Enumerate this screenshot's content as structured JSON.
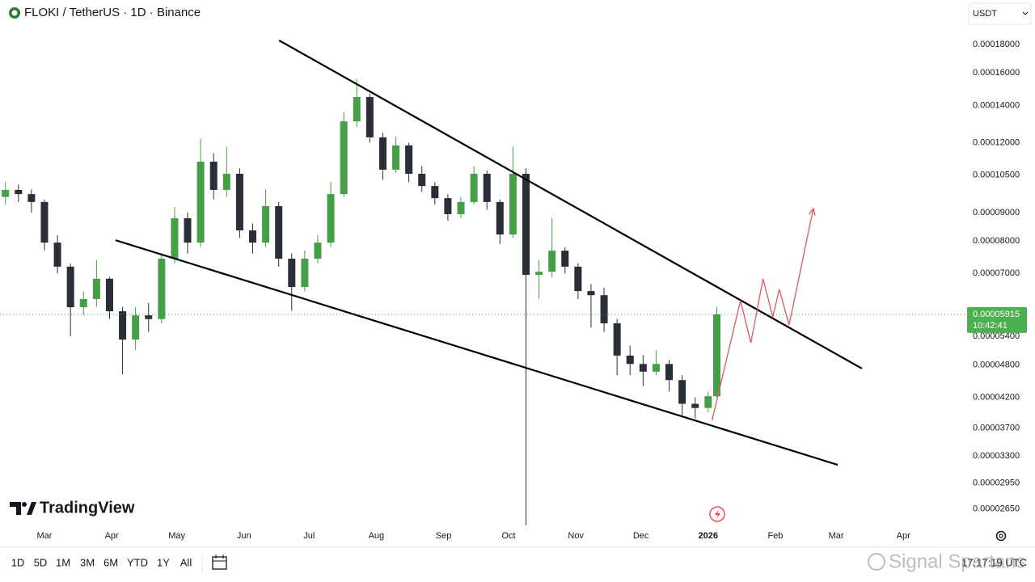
{
  "chart_data": {
    "type": "candlestick",
    "title": "FLOKI / TetherUS · 1D · Binance",
    "log_scale": true,
    "grid": false,
    "up_color": "#43a047",
    "down_color": "#2a2e39",
    "xlim": [
      -20.5,
      425
    ],
    "ylim": [
      2.477e-05,
      0.0002162
    ],
    "xticks": [
      {
        "value": 0,
        "label": "Mar"
      },
      {
        "value": 31,
        "label": "Apr"
      },
      {
        "value": 61,
        "label": "May"
      },
      {
        "value": 92,
        "label": "Jun"
      },
      {
        "value": 122,
        "label": "Jul"
      },
      {
        "value": 153,
        "label": "Aug"
      },
      {
        "value": 184,
        "label": "Sep"
      },
      {
        "value": 214,
        "label": "Oct"
      },
      {
        "value": 245,
        "label": "Nov"
      },
      {
        "value": 275,
        "label": "Dec"
      },
      {
        "value": 306,
        "label": "2026"
      },
      {
        "value": 337,
        "label": "Feb"
      },
      {
        "value": 365,
        "label": "Mar"
      },
      {
        "value": 396,
        "label": "Apr"
      }
    ],
    "yticks": [
      {
        "value": 0.00018,
        "label": "0.00018000"
      },
      {
        "value": 0.00016,
        "label": "0.00016000"
      },
      {
        "value": 0.00014,
        "label": "0.00014000"
      },
      {
        "value": 0.00012,
        "label": "0.00012000"
      },
      {
        "value": 0.000105,
        "label": "0.00010500"
      },
      {
        "value": 9e-05,
        "label": "0.00009000"
      },
      {
        "value": 8e-05,
        "label": "0.00008000"
      },
      {
        "value": 7e-05,
        "label": "0.00007000"
      },
      {
        "value": 5.4e-05,
        "label": "0.00005400"
      },
      {
        "value": 4.8e-05,
        "label": "0.00004800"
      },
      {
        "value": 4.2e-05,
        "label": "0.00004200"
      },
      {
        "value": 3.7e-05,
        "label": "0.00003700"
      },
      {
        "value": 3.3e-05,
        "label": "0.00003300"
      },
      {
        "value": 2.95e-05,
        "label": "0.00002950"
      },
      {
        "value": 2.65e-05,
        "label": "0.00002650"
      }
    ],
    "x": [
      -18,
      -12,
      -6,
      0,
      6,
      12,
      18,
      24,
      30,
      36,
      42,
      48,
      54,
      60,
      66,
      72,
      78,
      84,
      90,
      96,
      102,
      108,
      114,
      120,
      126,
      132,
      138,
      144,
      150,
      156,
      162,
      168,
      174,
      180,
      186,
      192,
      198,
      204,
      210,
      216,
      222,
      228,
      234,
      240,
      246,
      252,
      258,
      264,
      270,
      276,
      282,
      288,
      294,
      300,
      306,
      310
    ],
    "open": [
      9.6e-05,
      9.88e-05,
      9.71e-05,
      9.4e-05,
      7.95e-05,
      7.2e-05,
      6.09e-05,
      6.3e-05,
      6.85e-05,
      5.99e-05,
      5.33e-05,
      5.89e-05,
      5.8e-05,
      7.44e-05,
      8.79e-05,
      7.95e-05,
      0.000111,
      9.88e-05,
      0.0001056,
      8.36e-05,
      7.95e-05,
      9.24e-05,
      7.44e-05,
      6.62e-05,
      7.44e-05,
      7.95e-05,
      9.71e-05,
      0.0001311,
      0.0001449,
      0.0001227,
      0.0001074,
      0.0001187,
      0.0001056,
      0.0001004,
      9.55e-05,
      8.94e-05,
      9.4e-05,
      0.0001056,
      9.4e-05,
      8.22e-05,
      0.0001056,
      6.96e-05,
      7.05e-05,
      7.69e-05,
      7.2e-05,
      6.51e-05,
      6.4e-05,
      5.7e-05,
      4.99e-05,
      4.82e-05,
      4.67e-05,
      4.82e-05,
      4.51e-05,
      4.09e-05,
      4.02e-05,
      4.22e-05
    ],
    "high": [
      0.000102,
      0.000101,
      9.9e-05,
      9.5e-05,
      8.2e-05,
      7.3e-05,
      6.5e-05,
      7.4e-05,
      6.9e-05,
      6.1e-05,
      6.1e-05,
      6.2e-05,
      7.6e-05,
      9.2e-05,
      9e-05,
      0.000122,
      0.000115,
      0.000118,
      0.000108,
      8.6e-05,
      9.9e-05,
      9.4e-05,
      7.6e-05,
      7.7e-05,
      8.2e-05,
      0.000102,
      0.000136,
      0.000156,
      0.000147,
      0.000125,
      0.000123,
      0.00012,
      0.000109,
      0.000102,
      9.7e-05,
      9.6e-05,
      0.000109,
      0.000107,
      9.5e-05,
      0.000118,
      0.000108,
      7.4e-05,
      8.8e-05,
      7.8e-05,
      7.3e-05,
      6.7e-05,
      6.6e-05,
      5.8e-05,
      5.2e-05,
      5e-05,
      5.1e-05,
      4.9e-05,
      4.6e-05,
      4.2e-05,
      4.3e-05,
      6.1e-05
    ],
    "low": [
      9.3e-05,
      9.4e-05,
      9e-05,
      7.7e-05,
      7e-05,
      5.4e-05,
      5.9e-05,
      6.1e-05,
      5.8e-05,
      4.62e-05,
      5.1e-05,
      5.5e-05,
      5.7e-05,
      7.3e-05,
      7.6e-05,
      7.8e-05,
      9.5e-05,
      9.6e-05,
      8.1e-05,
      7.6e-05,
      7.8e-05,
      7.2e-05,
      6e-05,
      6.5e-05,
      7.3e-05,
      7.8e-05,
      9.6e-05,
      0.000128,
      0.00012,
      0.000103,
      0.000106,
      0.000102,
      9.8e-05,
      9.3e-05,
      8.7e-05,
      8.8e-05,
      9.3e-05,
      9.1e-05,
      7.9e-05,
      8.1e-05,
      2.48e-05,
      6.3e-05,
      6.9e-05,
      7e-05,
      6.3e-05,
      5.6e-05,
      5.5e-05,
      4.6e-05,
      4.6e-05,
      4.4e-05,
      4.6e-05,
      4.3e-05,
      3.9e-05,
      3.85e-05,
      3.95e-05,
      4.2e-05
    ],
    "close": [
      9.88e-05,
      9.71e-05,
      9.4e-05,
      7.95e-05,
      7.2e-05,
      6.09e-05,
      6.3e-05,
      6.85e-05,
      5.99e-05,
      5.33e-05,
      5.89e-05,
      5.8e-05,
      7.44e-05,
      8.79e-05,
      7.95e-05,
      0.000111,
      9.88e-05,
      0.0001056,
      8.36e-05,
      7.95e-05,
      9.24e-05,
      7.44e-05,
      6.62e-05,
      7.44e-05,
      7.95e-05,
      9.71e-05,
      0.0001311,
      0.0001449,
      0.0001227,
      0.0001074,
      0.0001187,
      0.0001056,
      0.0001004,
      9.55e-05,
      8.94e-05,
      9.4e-05,
      0.0001056,
      9.4e-05,
      8.22e-05,
      0.0001056,
      6.96e-05,
      7.05e-05,
      7.69e-05,
      7.2e-05,
      6.51e-05,
      6.4e-05,
      5.7e-05,
      4.99e-05,
      4.82e-05,
      4.67e-05,
      4.82e-05,
      4.51e-05,
      4.09e-05,
      4.02e-05,
      4.22e-05,
      5.915e-05
    ],
    "price_label": {
      "value": 5.915e-05,
      "label": "0.00005915"
    },
    "countdown": "10:42:41",
    "drawings": [
      {
        "color": "#000000",
        "points": [
          [
            108.2,
            0.000183
          ],
          [
            376.9,
            4.73e-05
          ]
        ]
      },
      {
        "color": "#000000",
        "points": [
          [
            32.8,
            8.03e-05
          ],
          [
            365.7,
            3.18e-05
          ]
        ]
      },
      {
        "color": "#e06070",
        "points": [
          [
            307.8,
            3.82e-05
          ],
          [
            320.9,
            6.26e-05
          ],
          [
            325.7,
            5.26e-05
          ],
          [
            331.3,
            6.85e-05
          ],
          [
            335.8,
            5.85e-05
          ],
          [
            338.8,
            6.56e-05
          ],
          [
            343.3,
            5.66e-05
          ],
          [
            354.5,
            9.15e-05
          ]
        ]
      }
    ]
  },
  "ui": {
    "currency": "USDT",
    "brand": "TradingView",
    "ranges": [
      "1D",
      "5D",
      "1M",
      "3M",
      "6M",
      "YTD",
      "1Y",
      "All"
    ],
    "clock": "17:17:19 UTC",
    "watermark": "Signal Spartans"
  }
}
